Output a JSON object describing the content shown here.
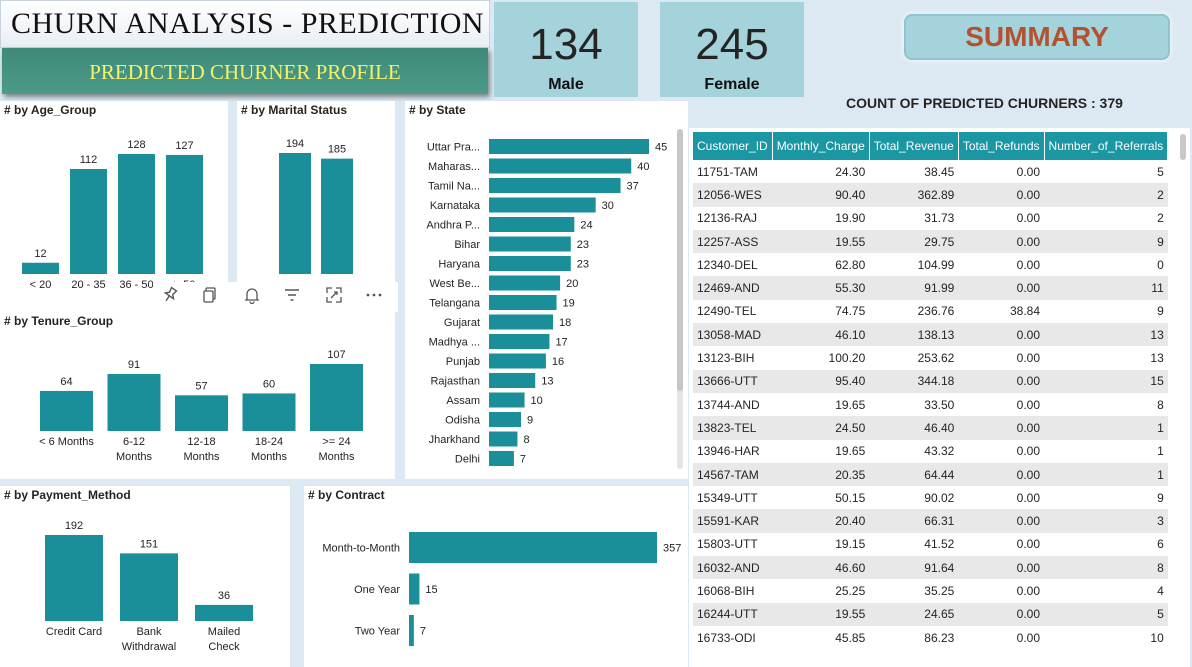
{
  "header": {
    "title": "CHURN ANALYSIS - PREDICTION",
    "subtitle": "PREDICTED CHURNER PROFILE"
  },
  "kpis": {
    "male": {
      "value": "134",
      "label": "Male"
    },
    "female": {
      "value": "245",
      "label": "Female"
    }
  },
  "summary_button": "SUMMARY",
  "count_line": "COUNT OF PREDICTED CHURNERS : 379",
  "colors": {
    "bar": "#1a8f99",
    "header": "#1a97a3",
    "kpi_bg": "#a4d3dc",
    "summary_text": "#b3522e"
  },
  "icons": [
    "pin-icon",
    "copy-icon",
    "bell-icon",
    "filter-icon",
    "focus-mode-icon",
    "more-options-icon"
  ],
  "chart_data": [
    {
      "type": "bar",
      "title": "# by Age_Group",
      "categories": [
        "< 20",
        "20 - 35",
        "36 - 50",
        "> 50"
      ],
      "visible_labels": [
        "< 20",
        "20 - 35",
        "36 - 50",
        "> 50"
      ],
      "values": [
        12,
        112,
        128,
        127
      ]
    },
    {
      "type": "bar",
      "title": "# by Marital Status",
      "categories": [
        "",
        ""
      ],
      "values": [
        194,
        185
      ]
    },
    {
      "type": "bar",
      "orientation": "horizontal",
      "title": "# by State",
      "categories": [
        "Uttar Pra...",
        "Maharas...",
        "Tamil Na...",
        "Karnataka",
        "Andhra P...",
        "Bihar",
        "Haryana",
        "West Be...",
        "Telangana",
        "Gujarat",
        "Madhya ...",
        "Punjab",
        "Rajasthan",
        "Assam",
        "Odisha",
        "Jharkhand",
        "Delhi"
      ],
      "values": [
        45,
        40,
        37,
        30,
        24,
        23,
        23,
        20,
        19,
        18,
        17,
        16,
        13,
        10,
        9,
        8,
        7
      ]
    },
    {
      "type": "bar",
      "title": "# by Tenure_Group",
      "categories": [
        [
          "< 6 Months"
        ],
        [
          "6-12",
          "Months"
        ],
        [
          "12-18",
          "Months"
        ],
        [
          "18-24",
          "Months"
        ],
        [
          ">= 24",
          "Months"
        ]
      ],
      "values": [
        64,
        91,
        57,
        60,
        107
      ]
    },
    {
      "type": "bar",
      "title": "# by Payment_Method",
      "categories": [
        [
          "Credit Card"
        ],
        [
          "Bank",
          "Withdrawal"
        ],
        [
          "Mailed",
          "Check"
        ]
      ],
      "values": [
        192,
        151,
        36
      ]
    },
    {
      "type": "bar",
      "orientation": "horizontal",
      "title": "# by Contract",
      "categories": [
        "Month-to-Month",
        "One Year",
        "Two Year"
      ],
      "values": [
        357,
        15,
        7
      ]
    }
  ],
  "table": {
    "columns": [
      "Customer_ID",
      "Monthly_Charge",
      "Total_Revenue",
      "Total_Refunds",
      "Number_of_Referrals"
    ],
    "rows": [
      [
        "11751-TAM",
        "24.30",
        "38.45",
        "0.00",
        "5"
      ],
      [
        "12056-WES",
        "90.40",
        "362.89",
        "0.00",
        "2"
      ],
      [
        "12136-RAJ",
        "19.90",
        "31.73",
        "0.00",
        "2"
      ],
      [
        "12257-ASS",
        "19.55",
        "29.75",
        "0.00",
        "9"
      ],
      [
        "12340-DEL",
        "62.80",
        "104.99",
        "0.00",
        "0"
      ],
      [
        "12469-AND",
        "55.30",
        "91.99",
        "0.00",
        "11"
      ],
      [
        "12490-TEL",
        "74.75",
        "236.76",
        "38.84",
        "9"
      ],
      [
        "13058-MAD",
        "46.10",
        "138.13",
        "0.00",
        "13"
      ],
      [
        "13123-BIH",
        "100.20",
        "253.62",
        "0.00",
        "13"
      ],
      [
        "13666-UTT",
        "95.40",
        "344.18",
        "0.00",
        "15"
      ],
      [
        "13744-AND",
        "19.65",
        "33.50",
        "0.00",
        "8"
      ],
      [
        "13823-TEL",
        "24.50",
        "46.40",
        "0.00",
        "1"
      ],
      [
        "13946-HAR",
        "19.65",
        "43.32",
        "0.00",
        "1"
      ],
      [
        "14567-TAM",
        "20.35",
        "64.44",
        "0.00",
        "1"
      ],
      [
        "15349-UTT",
        "50.15",
        "90.02",
        "0.00",
        "9"
      ],
      [
        "15591-KAR",
        "20.40",
        "66.31",
        "0.00",
        "3"
      ],
      [
        "15803-UTT",
        "19.15",
        "41.52",
        "0.00",
        "6"
      ],
      [
        "16032-AND",
        "46.60",
        "91.64",
        "0.00",
        "8"
      ],
      [
        "16068-BIH",
        "25.25",
        "35.25",
        "0.00",
        "4"
      ],
      [
        "16244-UTT",
        "19.55",
        "24.65",
        "0.00",
        "5"
      ],
      [
        "16733-ODI",
        "45.85",
        "86.23",
        "0.00",
        "10"
      ]
    ]
  }
}
